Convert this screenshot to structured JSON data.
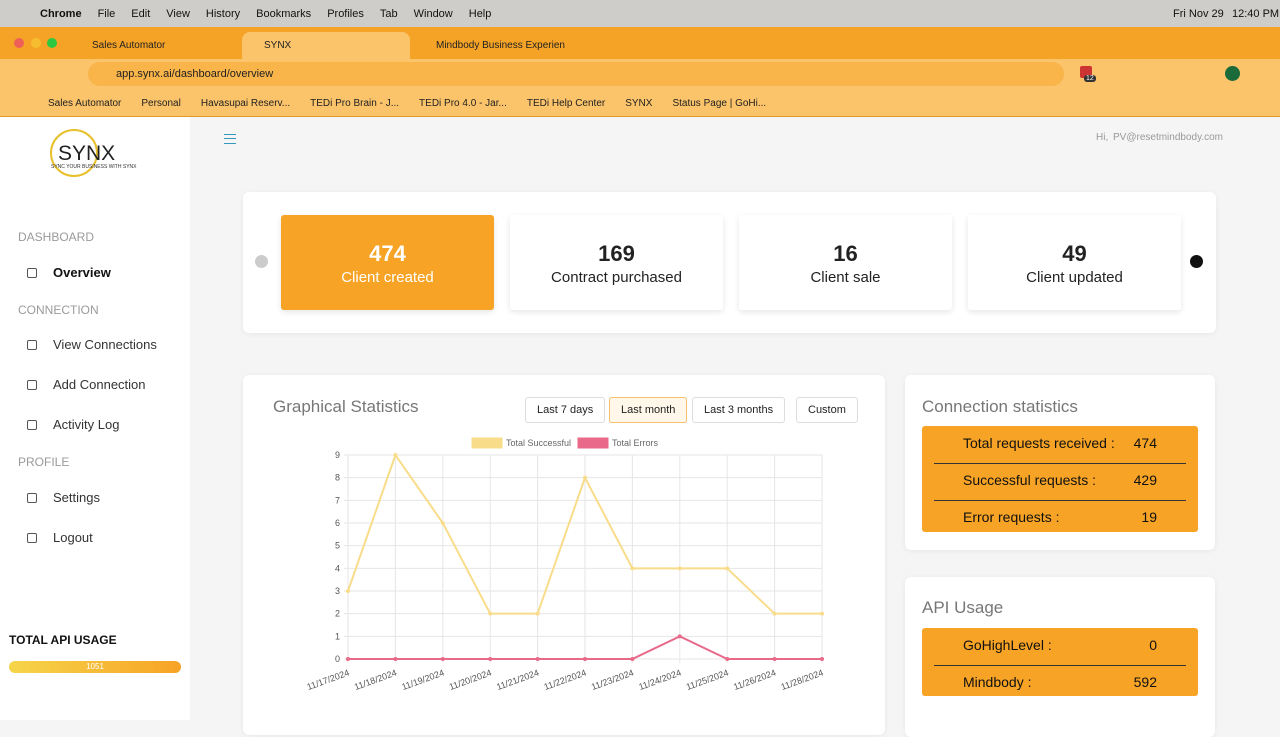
{
  "menubar": {
    "menus": [
      "Chrome",
      "File",
      "Edit",
      "View",
      "History",
      "Bookmarks",
      "Profiles",
      "Tab",
      "Window",
      "Help"
    ],
    "date": "Fri Nov 29",
    "time": "12:40 PM"
  },
  "browser": {
    "tabs": [
      "Sales Automator",
      "SYNX",
      "Mindbody Business Experien"
    ],
    "url": "app.synx.ai/dashboard/overview",
    "extension_badge": 12,
    "bookmarks": [
      "Sales Automator",
      "Personal",
      "Havasupai Reserv...",
      "TEDi Pro Brain - J...",
      "TEDi Pro 4.0 - Jar...",
      "TEDi Help Center",
      "SYNX",
      "Status Page | GoHi..."
    ]
  },
  "sidebar": {
    "logo": "SYNX",
    "tagline": "SYNC YOUR BUSINESS WITH SYNX",
    "sections": [
      {
        "title": "DASHBOARD",
        "items": [
          "Overview"
        ]
      },
      {
        "title": "CONNECTION",
        "items": [
          "View Connections",
          "Add Connection",
          "Activity Log"
        ]
      },
      {
        "title": "PROFILE",
        "items": [
          "Settings",
          "Logout"
        ]
      }
    ],
    "api_usage_title": "TOTAL API USAGE",
    "api_usage": 1051
  },
  "header": {
    "greeting": "Hi,",
    "user": "PV@resetmindbody.com"
  },
  "stats": [
    {
      "value": 474,
      "label": "Client created"
    },
    {
      "value": 169,
      "label": "Contract purchased"
    },
    {
      "value": 16,
      "label": "Client sale"
    },
    {
      "value": 49,
      "label": "Client updated"
    }
  ],
  "chart_panel": {
    "title": "Graphical Statistics",
    "ranges": [
      "Last 7 days",
      "Last month",
      "Last 3 months",
      "Custom"
    ]
  },
  "chart_data": {
    "type": "line",
    "categories": [
      "11/17/2024",
      "11/18/2024",
      "11/19/2024",
      "11/20/2024",
      "11/21/2024",
      "11/22/2024",
      "11/23/2024",
      "11/24/2024",
      "11/25/2024",
      "11/26/2024",
      "11/28/2024"
    ],
    "series": [
      {
        "name": "Total Successful",
        "color": "#f9dc8a",
        "values": [
          3,
          9,
          6,
          2,
          2,
          8,
          4,
          4,
          4,
          2,
          2
        ]
      },
      {
        "name": "Total Errors",
        "color": "#e8698a",
        "values": [
          0,
          0,
          0,
          0,
          0,
          0,
          0,
          1,
          0,
          0,
          0
        ]
      }
    ],
    "ylim": [
      0,
      9
    ],
    "yticks": [
      0,
      1,
      2,
      3,
      4,
      5,
      6,
      7,
      8,
      9
    ],
    "grid": true,
    "legend": "top"
  },
  "connection_statistics": {
    "title": "Connection statistics",
    "rows": [
      {
        "label": "Total requests received :",
        "value": 474
      },
      {
        "label": "Successful requests :",
        "value": 429
      },
      {
        "label": "Error requests :",
        "value": 19
      }
    ]
  },
  "api_usage": {
    "title": "API Usage",
    "rows": [
      {
        "label": "GoHighLevel :",
        "value": 0
      },
      {
        "label": "Mindbody :",
        "value": 592
      }
    ]
  }
}
